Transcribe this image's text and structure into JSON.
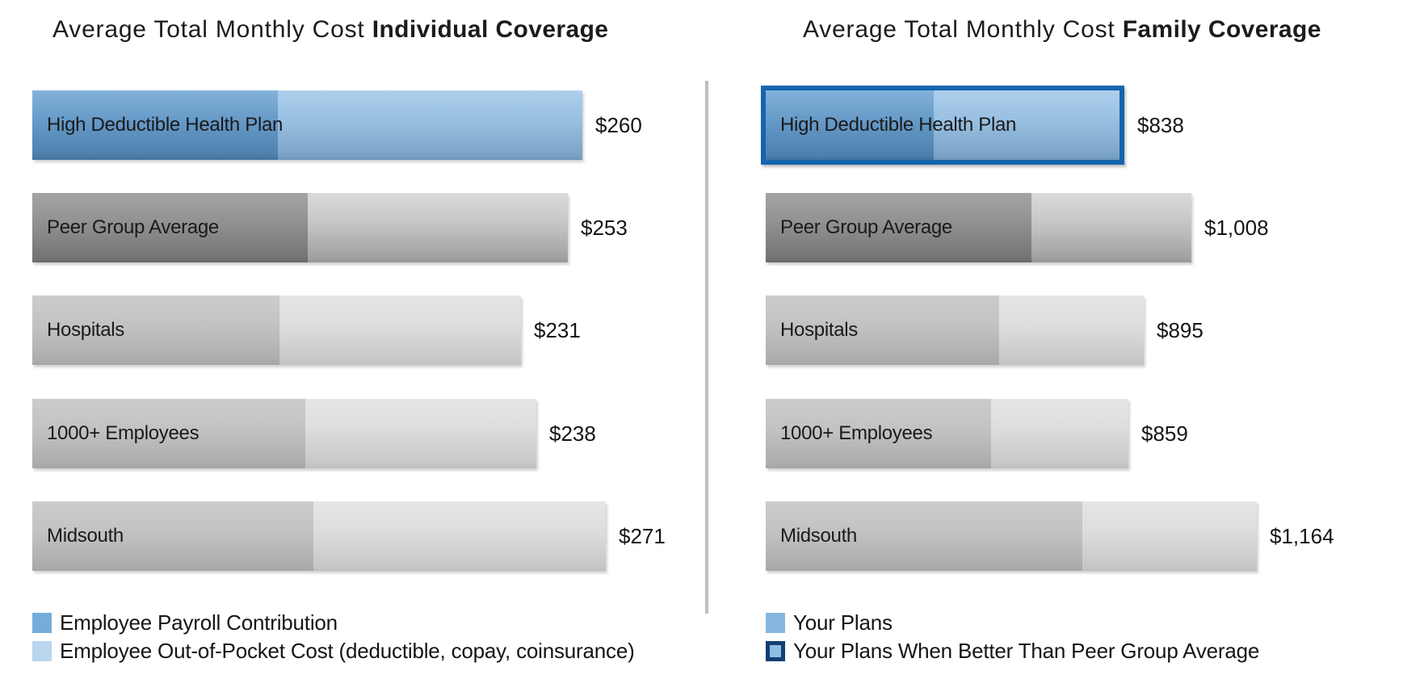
{
  "colors": {
    "your_plan_dark_blue": "#5e93c3",
    "your_plan_light_blue": "#9bc2e2",
    "highlight_border_blue": "#1565b0",
    "legend_outline_navy": "#133e73",
    "peer_group_dark_gray": "#8e8e8e",
    "peer_group_light_gray": "#c3c3c3",
    "benchmark_dark_gray": "#bfbfbf",
    "benchmark_light_gray": "#dadada",
    "divider_gray": "#bfbfbf",
    "text": "#1a1a1a"
  },
  "chart_data": [
    {
      "type": "bar",
      "orientation": "horizontal",
      "title": "Average Total Monthly Cost Individual Coverage",
      "title_regular": "Average Total Monthly Cost",
      "title_bold": "Individual Coverage",
      "categories": [
        "High Deductible Health Plan",
        "Peer Group Average",
        "Hospitals",
        "1000+ Employees",
        "Midsouth"
      ],
      "values": [
        260,
        253,
        231,
        238,
        271
      ],
      "value_labels": [
        "$260",
        "$253",
        "$231",
        "$238",
        "$271"
      ],
      "series": [
        {
          "name": "Employee Payroll Contribution",
          "values": [
            116,
            130,
            117,
            129,
            133
          ]
        },
        {
          "name": "Employee Out-of-Pocket Cost (deductible, copay, coinsurance)",
          "values": [
            144,
            123,
            114,
            109,
            138
          ]
        }
      ],
      "bar_styles": [
        "blue",
        "peer",
        "gray",
        "gray",
        "gray"
      ],
      "highlighted_bar": null,
      "xlim": [
        0,
        290
      ],
      "grid": false,
      "value_labels_position": "end-of-bar",
      "legend_position": "bottom-left",
      "legend": [
        {
          "label": "Employee Payroll Contribution",
          "swatch": "medium-blue"
        },
        {
          "label": "Employee Out-of-Pocket Cost (deductible, copay, coinsurance)",
          "swatch": "light-blue"
        }
      ]
    },
    {
      "type": "bar",
      "orientation": "horizontal",
      "title": "Average Total Monthly Cost Family Coverage",
      "title_regular": "Average Total Monthly Cost",
      "title_bold": "Family Coverage",
      "categories": [
        "High Deductible Health Plan",
        "Peer Group Average",
        "Hospitals",
        "1000+ Employees",
        "Midsouth"
      ],
      "values": [
        838,
        1008,
        895,
        859,
        1164
      ],
      "value_labels": [
        "$838",
        "$1,008",
        "$895",
        "$859",
        "$1,164"
      ],
      "series": [
        {
          "name": "Employee Payroll Contribution",
          "values": [
            398,
            629,
            553,
            533,
            750
          ]
        },
        {
          "name": "Employee Out-of-Pocket Cost (deductible, copay, coinsurance)",
          "values": [
            440,
            379,
            342,
            326,
            414
          ]
        }
      ],
      "bar_styles": [
        "blue",
        "peer",
        "gray",
        "gray",
        "gray"
      ],
      "highlighted_bar": 0,
      "xlim": [
        0,
        1340
      ],
      "grid": false,
      "value_labels_position": "end-of-bar",
      "legend_position": "bottom-left",
      "legend": [
        {
          "label": "Your Plans",
          "swatch": "plain-blue"
        },
        {
          "label": "Your Plans When Better Than Peer Group Average",
          "swatch": "outlined-blue"
        }
      ]
    }
  ]
}
